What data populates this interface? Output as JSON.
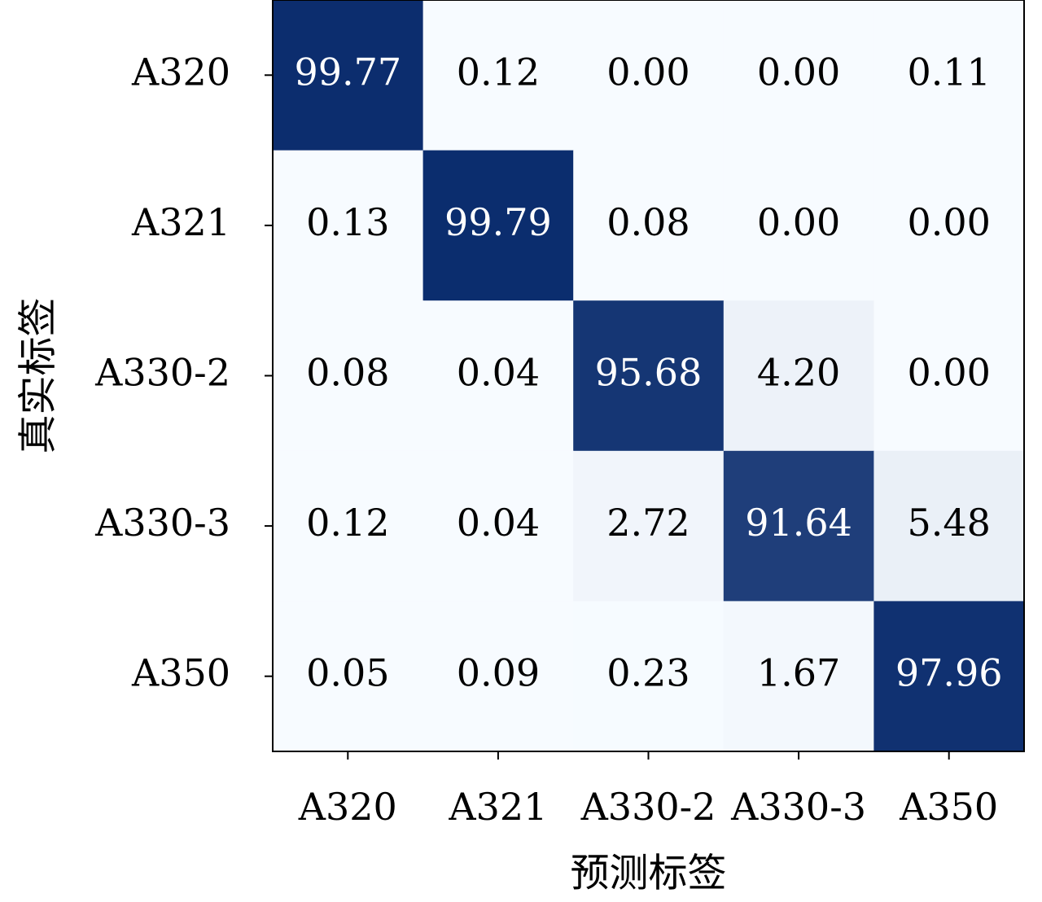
{
  "chart_data": {
    "type": "heatmap",
    "xlabel": "预测标签",
    "ylabel": "真实标签",
    "x_categories": [
      "A320",
      "A321",
      "A330-2",
      "A330-3",
      "A350"
    ],
    "y_categories": [
      "A320",
      "A321",
      "A330-2",
      "A330-3",
      "A350"
    ],
    "values": [
      [
        99.77,
        0.12,
        0.0,
        0.0,
        0.11
      ],
      [
        0.13,
        99.79,
        0.08,
        0.0,
        0.0
      ],
      [
        0.08,
        0.04,
        95.68,
        4.2,
        0.0
      ],
      [
        0.12,
        0.04,
        2.72,
        91.64,
        5.48
      ],
      [
        0.05,
        0.09,
        0.23,
        1.67,
        97.96
      ]
    ],
    "value_labels": [
      [
        "99.77",
        "0.12",
        "0.00",
        "0.00",
        "0.11"
      ],
      [
        "0.13",
        "99.79",
        "0.08",
        "0.00",
        "0.00"
      ],
      [
        "0.08",
        "0.04",
        "95.68",
        "4.20",
        "0.00"
      ],
      [
        "0.12",
        "0.04",
        "2.72",
        "91.64",
        "5.48"
      ],
      [
        "0.05",
        "0.09",
        "0.23",
        "1.67",
        "97.96"
      ]
    ],
    "colormap": "Blues",
    "vmin": 0,
    "vmax": 100,
    "colors": {
      "high": "#0b2d6e",
      "low": "#f7fbff",
      "text_dark": "#000000",
      "text_light": "#ffffff",
      "frame": "#000000"
    },
    "grid": false,
    "legend": "none"
  }
}
